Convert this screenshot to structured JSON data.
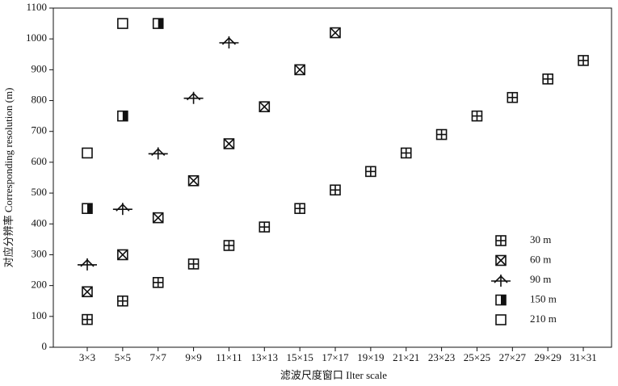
{
  "chart_data": {
    "type": "scatter",
    "x_label": "滤波尺度窗口 Ilter scale",
    "y_label": "对应分辨率 Corresponding resolution (m)",
    "categories": [
      "3×3",
      "5×5",
      "7×7",
      "9×9",
      "11×11",
      "13×13",
      "15×15",
      "17×17",
      "19×19",
      "21×21",
      "23×23",
      "25×25",
      "27×27",
      "29×29",
      "31×31"
    ],
    "series": [
      {
        "name": "30 m",
        "color": "#111111",
        "marker": "square-plus",
        "values": [
          90,
          150,
          210,
          270,
          330,
          390,
          450,
          510,
          570,
          630,
          690,
          750,
          810,
          870,
          930
        ]
      },
      {
        "name": "60 m",
        "color": "#111111",
        "marker": "square-x",
        "values": [
          180,
          300,
          420,
          540,
          660,
          780,
          900,
          1020,
          null,
          null,
          null,
          null,
          null,
          null,
          null
        ]
      },
      {
        "name": "90 m",
        "color": "#111111",
        "marker": "triangle-cross",
        "values": [
          270,
          450,
          630,
          810,
          990,
          null,
          null,
          null,
          null,
          null,
          null,
          null,
          null,
          null,
          null
        ]
      },
      {
        "name": "150 m",
        "color": "#111111",
        "marker": "square-half",
        "values": [
          450,
          750,
          1050,
          null,
          null,
          null,
          null,
          null,
          null,
          null,
          null,
          null,
          null,
          null,
          null
        ]
      },
      {
        "name": "210 m",
        "color": "#111111",
        "marker": "square",
        "values": [
          630,
          1050,
          null,
          null,
          null,
          null,
          null,
          null,
          null,
          null,
          null,
          null,
          null,
          null,
          null
        ]
      }
    ],
    "ylim": [
      0,
      1100
    ],
    "yticks": [
      0,
      100,
      200,
      300,
      400,
      500,
      600,
      700,
      800,
      900,
      1000,
      1100
    ],
    "legend": "lower-right"
  }
}
